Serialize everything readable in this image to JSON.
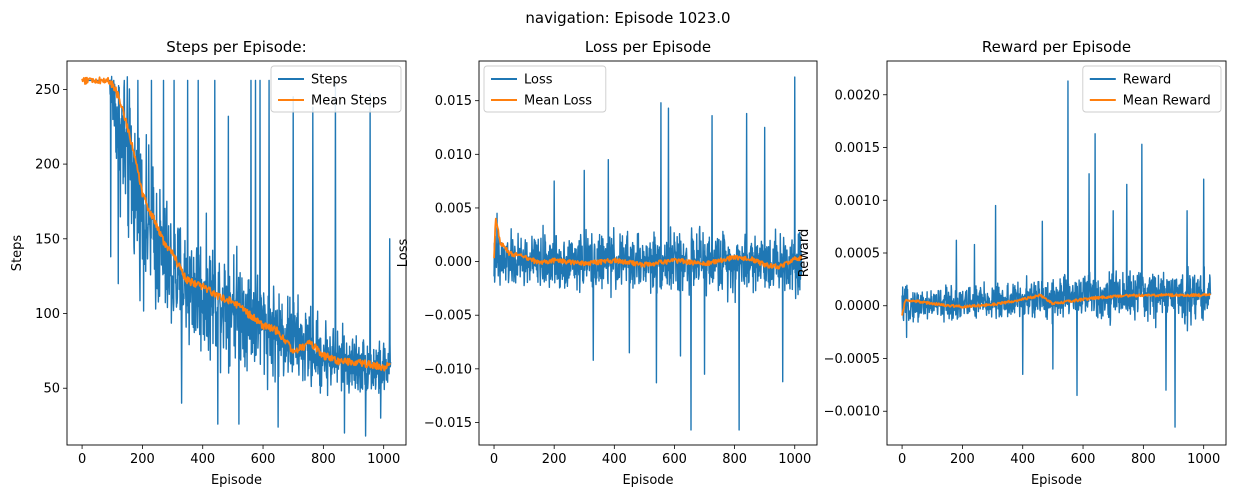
{
  "suptitle": "navigation: Episode 1023.0",
  "chart_data": [
    {
      "type": "line",
      "title": "Steps per Episode:",
      "xlabel": "Episode",
      "ylabel": "Steps",
      "xlim": [
        -50,
        1074
      ],
      "ylim": [
        12,
        269
      ],
      "xticks": [
        0,
        200,
        400,
        600,
        800,
        1000
      ],
      "yticks": [
        50,
        100,
        150,
        200,
        250
      ],
      "ytick_labels": [
        "50",
        "100",
        "150",
        "200",
        "250"
      ],
      "legend": "top-right",
      "series": [
        {
          "name": "Steps",
          "color": "#1f77b4",
          "kind": "noisy",
          "x": [
            0,
            90,
            100,
            130,
            150,
            200,
            250,
            300,
            400,
            500,
            600,
            700,
            800,
            900,
            1000,
            1023
          ],
          "center": [
            256,
            256,
            245,
            215,
            200,
            168,
            145,
            125,
            112,
            108,
            92,
            82,
            72,
            66,
            62,
            64
          ],
          "spread": [
            0,
            0,
            30,
            60,
            65,
            60,
            55,
            50,
            48,
            45,
            40,
            35,
            30,
            25,
            22,
            20
          ],
          "spikes": [
            [
              105,
              256
            ],
            [
              140,
              256
            ],
            [
              185,
              256
            ],
            [
              230,
              256
            ],
            [
              270,
              256
            ],
            [
              305,
              256
            ],
            [
              350,
              256
            ],
            [
              385,
              256
            ],
            [
              440,
              256
            ],
            [
              485,
              232
            ],
            [
              560,
              256
            ],
            [
              575,
              256
            ],
            [
              590,
              256
            ],
            [
              620,
              256
            ],
            [
              650,
              205
            ],
            [
              700,
              245
            ],
            [
              765,
              238
            ],
            [
              840,
              256
            ],
            [
              870,
              256
            ],
            [
              955,
              247
            ],
            [
              1020,
              150
            ],
            [
              95,
              138
            ],
            [
              120,
              120
            ],
            [
              330,
              40
            ],
            [
              450,
              26
            ],
            [
              520,
              26
            ],
            [
              650,
              24
            ],
            [
              870,
              20
            ],
            [
              940,
              18
            ],
            [
              990,
              30
            ]
          ]
        },
        {
          "name": "Mean Steps",
          "color": "#ff7f0e",
          "kind": "smooth",
          "x": [
            0,
            90,
            110,
            130,
            150,
            170,
            190,
            200,
            220,
            250,
            270,
            300,
            330,
            350,
            400,
            450,
            500,
            550,
            600,
            650,
            700,
            760,
            800,
            850,
            900,
            950,
            1000,
            1023
          ],
          "y": [
            256,
            256,
            250,
            240,
            225,
            210,
            190,
            180,
            170,
            158,
            148,
            140,
            128,
            122,
            118,
            112,
            108,
            100,
            92,
            88,
            75,
            80,
            72,
            68,
            68,
            66,
            64,
            66
          ],
          "jitter": 2.5
        }
      ]
    },
    {
      "type": "line",
      "title": "Loss per Episode",
      "xlabel": "Episode",
      "ylabel": "Loss",
      "xlim": [
        -50,
        1074
      ],
      "ylim": [
        -0.0171,
        0.0187
      ],
      "xticks": [
        0,
        200,
        400,
        600,
        800,
        1000
      ],
      "yticks": [
        -0.015,
        -0.01,
        -0.005,
        0,
        0.005,
        0.01,
        0.015
      ],
      "ytick_labels": [
        "−0.015",
        "−0.010",
        "−0.005",
        "0.000",
        "0.005",
        "0.010",
        "0.015"
      ],
      "legend": "top-left",
      "series": [
        {
          "name": "Loss",
          "color": "#1f77b4",
          "kind": "noisy",
          "x": [
            0,
            1023
          ],
          "center": [
            0,
            0
          ],
          "spread": [
            0.003,
            0.0035
          ],
          "spikes": [
            [
              555,
              0.0148
            ],
            [
              540,
              -0.0113
            ],
            [
              655,
              -0.0157
            ],
            [
              815,
              -0.0157
            ],
            [
              725,
              0.0136
            ],
            [
              1000,
              0.0172
            ],
            [
              580,
              0.0143
            ],
            [
              840,
              0.0138
            ],
            [
              330,
              -0.0092
            ],
            [
              200,
              0.0075
            ],
            [
              380,
              0.0095
            ],
            [
              450,
              -0.0085
            ],
            [
              700,
              -0.0105
            ],
            [
              900,
              0.0125
            ],
            [
              960,
              -0.0112
            ],
            [
              10,
              0.0045
            ],
            [
              20,
              -0.0022
            ],
            [
              300,
              0.0085
            ],
            [
              620,
              -0.0088
            ]
          ]
        },
        {
          "name": "Mean Loss",
          "color": "#ff7f0e",
          "kind": "smooth",
          "x": [
            0,
            5,
            20,
            50,
            100,
            150,
            200,
            300,
            400,
            500,
            600,
            700,
            800,
            850,
            900,
            950,
            1000,
            1023
          ],
          "y": [
            0.0002,
            0.0042,
            0.0018,
            0.0008,
            0.0004,
            -0.0001,
            0.0001,
            -0.0002,
            0.0001,
            -0.0003,
            0.0001,
            -0.0002,
            0.0004,
            0.0003,
            -0.0003,
            -0.0005,
            0.0002,
            0.0004
          ],
          "jitter": 0.00022
        }
      ]
    },
    {
      "type": "line",
      "title": "Reward per Episode",
      "xlabel": "Episode",
      "ylabel": "Reward",
      "xlim": [
        -50,
        1074
      ],
      "ylim": [
        -0.00132,
        0.00232
      ],
      "xticks": [
        0,
        200,
        400,
        600,
        800,
        1000
      ],
      "yticks": [
        -0.001,
        -0.0005,
        0,
        0.0005,
        0.001,
        0.0015,
        0.002
      ],
      "ytick_labels": [
        "−0.0010",
        "−0.0005",
        "0.0000",
        "0.0005",
        "0.0010",
        "0.0015",
        "0.0020"
      ],
      "legend": "top-right",
      "series": [
        {
          "name": "Reward",
          "color": "#1f77b4",
          "kind": "noisy",
          "x": [
            0,
            400,
            600,
            1023
          ],
          "center": [
            0,
            5e-05,
            0.0001,
            0.0001
          ],
          "spread": [
            0.00018,
            0.00022,
            0.00027,
            0.0003
          ],
          "spikes": [
            [
              550,
              0.00213
            ],
            [
              640,
              0.00163
            ],
            [
              795,
              0.00153
            ],
            [
              310,
              0.00095
            ],
            [
              465,
              0.0008
            ],
            [
              580,
              -0.00085
            ],
            [
              875,
              -0.0008
            ],
            [
              905,
              -0.00115
            ],
            [
              1000,
              0.0012
            ],
            [
              945,
              0.0009
            ],
            [
              700,
              0.0009
            ],
            [
              745,
              0.00115
            ],
            [
              620,
              0.00125
            ],
            [
              400,
              -0.00065
            ],
            [
              240,
              0.00058
            ],
            [
              180,
              0.00062
            ],
            [
              500,
              -0.0006
            ],
            [
              15,
              -0.0003
            ]
          ]
        },
        {
          "name": "Mean Reward",
          "color": "#ff7f0e",
          "kind": "smooth",
          "x": [
            0,
            10,
            30,
            100,
            200,
            300,
            400,
            460,
            500,
            600,
            700,
            800,
            900,
            1000,
            1023
          ],
          "y": [
            -0.0001,
            5e-05,
            5e-05,
            2e-05,
            -1e-05,
            1e-05,
            6e-05,
            0.0001,
            2e-05,
            6e-05,
            9e-05,
            0.0001,
            0.0001,
            0.0001,
            0.00011
          ],
          "jitter": 1.2e-05
        }
      ]
    }
  ]
}
